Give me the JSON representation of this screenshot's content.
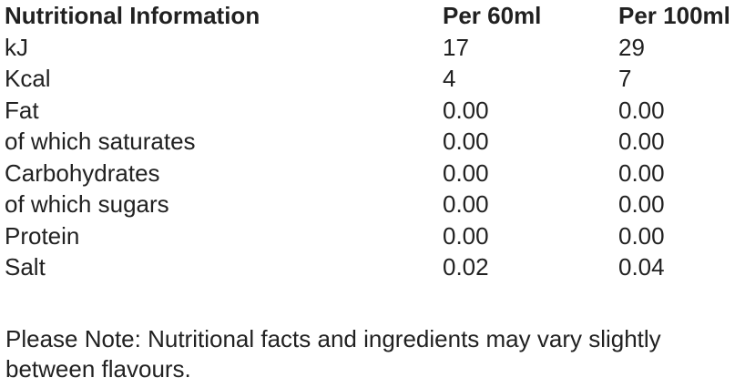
{
  "page": {
    "background_color": "#ffffff",
    "text_color": "#212121"
  },
  "table": {
    "headers": [
      "Nutritional Information",
      "Per 60ml",
      "Per 100ml"
    ],
    "rows": [
      {
        "label": "kJ",
        "per60": "17",
        "per100": "29"
      },
      {
        "label": "Kcal",
        "per60": "4",
        "per100": "7"
      },
      {
        "label": "Fat",
        "per60": "0.00",
        "per100": "0.00"
      },
      {
        "label": "of which saturates",
        "per60": "0.00",
        "per100": "0.00"
      },
      {
        "label": "Carbohydrates",
        "per60": "0.00",
        "per100": "0.00"
      },
      {
        "label": "of which sugars",
        "per60": "0.00",
        "per100": "0.00"
      },
      {
        "label": "Protein",
        "per60": "0.00",
        "per100": "0.00"
      },
      {
        "label": "Salt",
        "per60": "0.02",
        "per100": "0.04"
      }
    ]
  },
  "note": "Please Note: Nutritional facts and ingredients may vary slightly between flavours."
}
